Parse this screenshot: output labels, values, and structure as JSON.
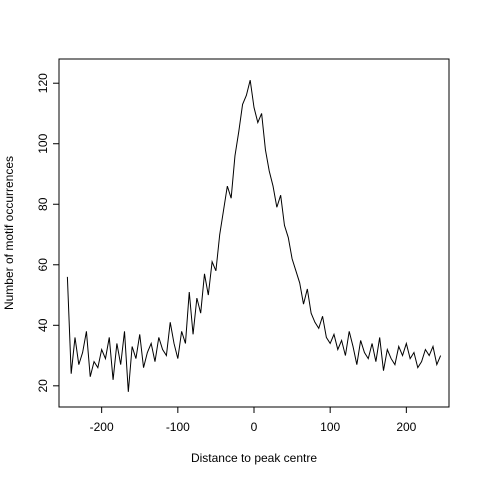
{
  "chart_data": {
    "type": "line",
    "title": "",
    "xlabel": "Distance to peak centre",
    "ylabel": "Number of motif occurrences",
    "xlim": [
      -256,
      256
    ],
    "ylim": [
      13,
      128
    ],
    "x_ticks": [
      -200,
      -100,
      0,
      100,
      200
    ],
    "y_ticks": [
      20,
      40,
      60,
      80,
      100,
      120
    ],
    "x_tick_labels": [
      "-200",
      "-100",
      "0",
      "100",
      "200"
    ],
    "y_tick_labels": [
      "20",
      "40",
      "60",
      "80",
      "100",
      "120"
    ],
    "grid": false,
    "legend": "none",
    "line_color": "#000000",
    "series": [
      {
        "x": [
          -245,
          -240,
          -235,
          -230,
          -225,
          -220,
          -215,
          -210,
          -205,
          -200,
          -195,
          -190,
          -185,
          -180,
          -175,
          -170,
          -165,
          -160,
          -155,
          -150,
          -145,
          -140,
          -135,
          -130,
          -125,
          -120,
          -115,
          -110,
          -105,
          -100,
          -95,
          -90,
          -85,
          -80,
          -75,
          -70,
          -65,
          -60,
          -55,
          -50,
          -45,
          -40,
          -35,
          -30,
          -25,
          -20,
          -15,
          -10,
          -5,
          0,
          5,
          10,
          15,
          20,
          25,
          30,
          35,
          40,
          45,
          50,
          55,
          60,
          65,
          70,
          75,
          80,
          85,
          90,
          95,
          100,
          105,
          110,
          115,
          120,
          125,
          130,
          135,
          140,
          145,
          150,
          155,
          160,
          165,
          170,
          175,
          180,
          185,
          190,
          195,
          200,
          205,
          210,
          215,
          220,
          225,
          230,
          235,
          240,
          245
        ],
        "values": [
          56,
          24,
          36,
          27,
          31,
          38,
          23,
          28,
          26,
          32,
          29,
          36,
          22,
          34,
          27,
          38,
          18,
          33,
          29,
          37,
          26,
          31,
          34,
          28,
          36,
          32,
          30,
          41,
          34,
          29,
          38,
          34,
          51,
          37,
          49,
          44,
          57,
          50,
          61,
          58,
          70,
          78,
          86,
          82,
          96,
          104,
          113,
          116,
          121,
          112,
          107,
          110,
          98,
          91,
          86,
          79,
          83,
          73,
          69,
          62,
          58,
          54,
          47,
          52,
          44,
          41,
          39,
          43,
          36,
          34,
          37,
          32,
          35,
          30,
          38,
          33,
          27,
          35,
          31,
          29,
          34,
          28,
          36,
          25,
          32,
          29,
          27,
          33,
          30,
          34,
          29,
          31,
          26,
          28,
          32,
          30,
          33,
          27,
          30
        ]
      }
    ]
  }
}
